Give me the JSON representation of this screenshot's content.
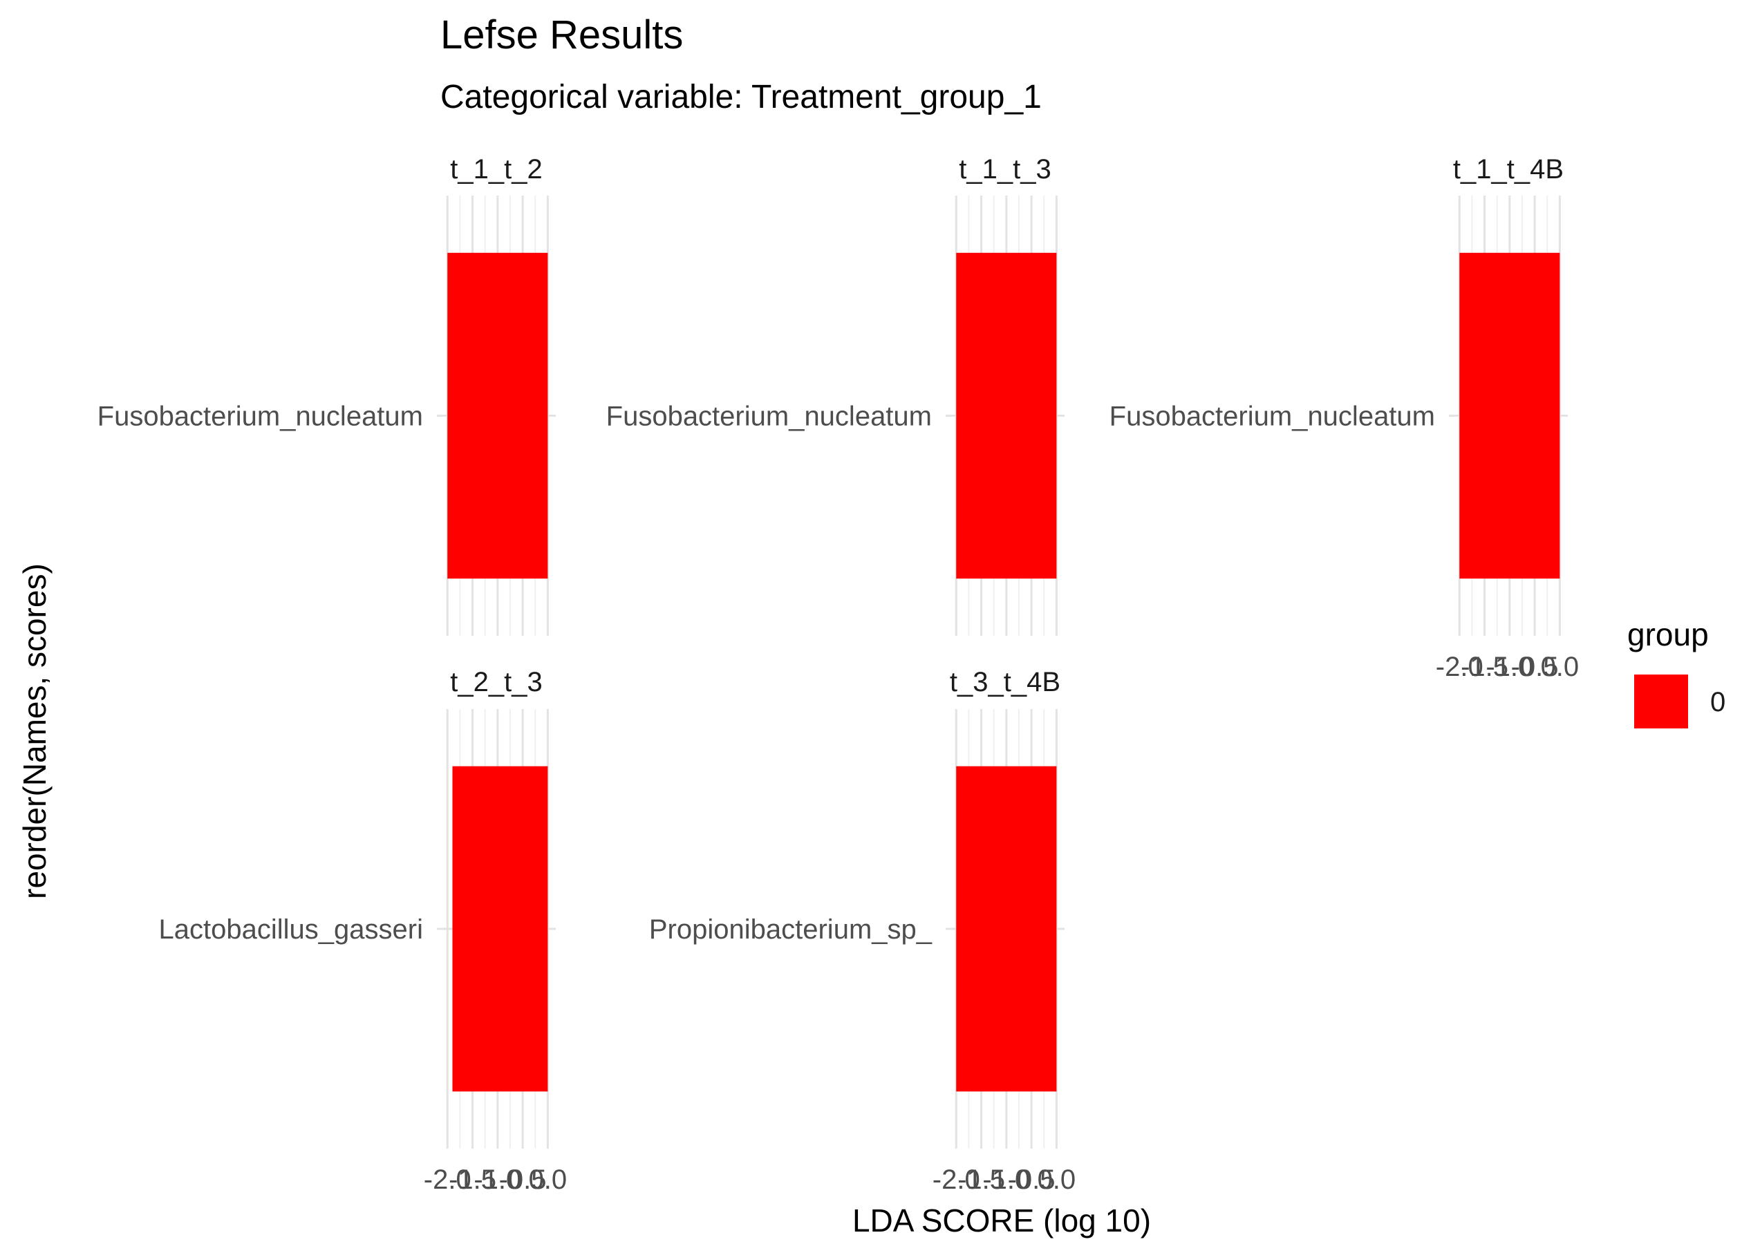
{
  "chart_data": {
    "type": "bar",
    "orientation": "horizontal",
    "title": "Lefse Results",
    "subtitle": "Categorical variable: Treatment_group_1",
    "xlabel": "LDA SCORE (log 10)",
    "ylabel": "reorder(Names, scores)",
    "xlim": [
      -2.1,
      0.05
    ],
    "xticks": [
      -2.0,
      -1.5,
      -1.0,
      -0.5,
      0.0
    ],
    "xtick_labels": [
      "-2.0",
      "-1.5",
      "-1.0",
      "-0.5",
      "0.0"
    ],
    "grid": true,
    "legend": {
      "title": "group",
      "position": "right",
      "entries": [
        {
          "label": "0",
          "color": "#ff0000"
        }
      ]
    },
    "facets": [
      {
        "label": "t_1_t_2",
        "categories": [
          "Fusobacterium_nucleatum"
        ],
        "values": [
          -2.0
        ]
      },
      {
        "label": "t_1_t_3",
        "categories": [
          "Fusobacterium_nucleatum"
        ],
        "values": [
          -2.0
        ]
      },
      {
        "label": "t_1_t_4B",
        "categories": [
          "Fusobacterium_nucleatum"
        ],
        "values": [
          -2.0
        ]
      },
      {
        "label": "t_2_t_3",
        "categories": [
          "Lactobacillus_gasseri"
        ],
        "values": [
          -1.9
        ]
      },
      {
        "label": "t_3_t_4B",
        "categories": [
          "Propionibacterium_sp_"
        ],
        "values": [
          -2.0
        ]
      }
    ]
  }
}
